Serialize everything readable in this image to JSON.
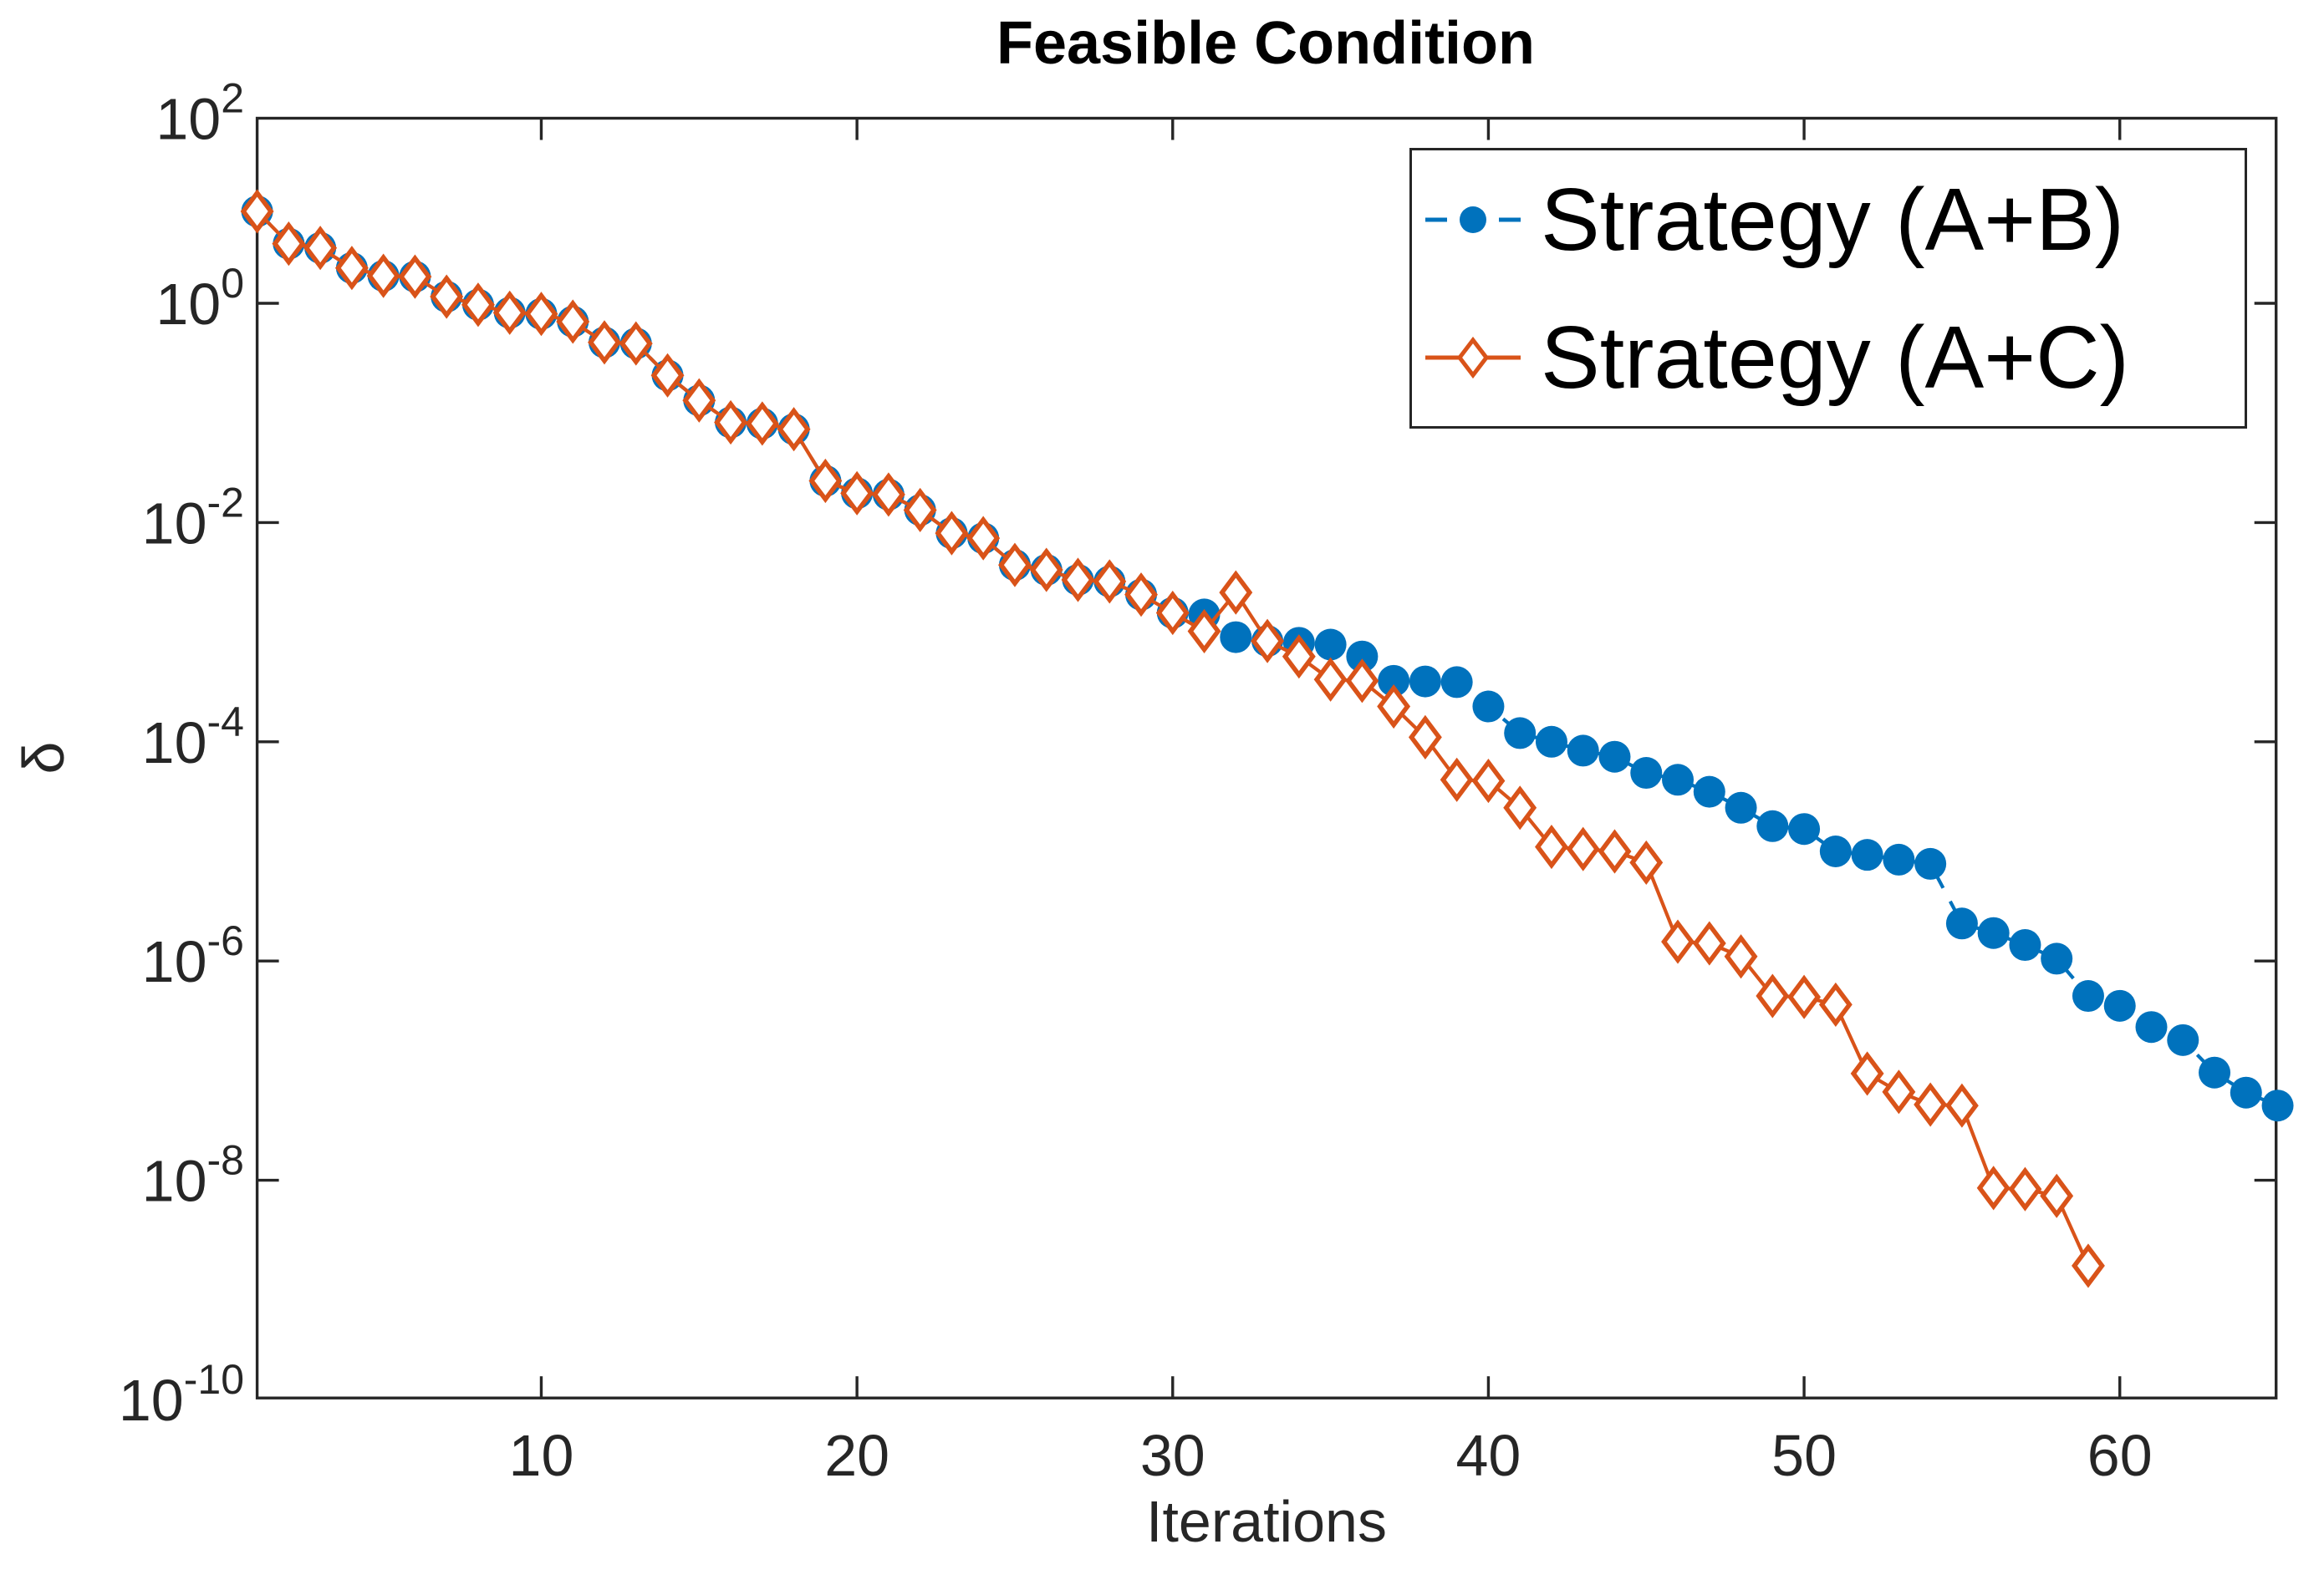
{
  "title": "Feasible Condition",
  "axis": {
    "x_label": "Iterations",
    "y_label": "δ",
    "x_ticks": [
      10,
      20,
      30,
      40,
      50,
      60
    ],
    "y_tick_base": "10",
    "y_tick_exponents": [
      2,
      0,
      -2,
      -4,
      -6,
      -8,
      -10
    ]
  },
  "legend": {
    "entries": [
      {
        "label": "Strategy (A+B)",
        "color": "#0072BD",
        "line_style": "dashed",
        "marker": "filled-circle"
      },
      {
        "label": "Strategy (A+C)",
        "color": "#D95319",
        "line_style": "solid",
        "marker": "open-diamond"
      }
    ]
  },
  "chart_data": {
    "type": "line",
    "title": "Feasible Condition",
    "xlabel": "Iterations",
    "ylabel": "δ",
    "grid": false,
    "legend_position": "northeast",
    "x_axis": {
      "min": 1,
      "max": 65,
      "ticks": [
        10,
        20,
        30,
        40,
        50,
        60
      ]
    },
    "y_axis": {
      "scale": "log",
      "min": 1e-10,
      "max": 100,
      "tick_labels": [
        "10^2",
        "10^0",
        "10^-2",
        "10^-4",
        "10^-6",
        "10^-8",
        "10^-10"
      ]
    },
    "series": [
      {
        "name": "Strategy (A+B)",
        "color": "#0072BD",
        "line_style": "dashed",
        "marker": "filled-circle",
        "x": [
          1,
          2,
          3,
          4,
          5,
          6,
          7,
          8,
          9,
          10,
          11,
          12,
          13,
          14,
          15,
          16,
          17,
          18,
          19,
          20,
          21,
          22,
          23,
          24,
          25,
          26,
          27,
          28,
          29,
          30,
          31,
          32,
          33,
          34,
          35,
          36,
          37,
          38,
          39,
          40,
          41,
          42,
          43,
          44,
          45,
          46,
          47,
          48,
          49,
          50,
          51,
          52,
          53,
          54,
          55,
          56,
          57,
          58,
          59,
          60,
          61,
          62,
          63,
          64,
          65
        ],
        "y": [
          6.9,
          3.5,
          3.2,
          2.1,
          1.78,
          1.75,
          1.15,
          0.97,
          0.82,
          0.8,
          0.68,
          0.44,
          0.43,
          0.22,
          0.13,
          0.082,
          0.08,
          0.071,
          0.024,
          0.0185,
          0.018,
          0.013,
          0.008,
          0.0072,
          0.0041,
          0.0037,
          0.003,
          0.0029,
          0.0022,
          0.0015,
          0.00145,
          0.0009,
          0.00083,
          0.0008,
          0.00077,
          0.0006,
          0.00036,
          0.000355,
          0.00035,
          0.00021,
          0.00012,
          0.0001,
          8.3e-05,
          7.3e-05,
          5.2e-05,
          4.5e-05,
          3.5e-05,
          2.5e-05,
          1.7e-05,
          1.6e-05,
          1e-05,
          9.3e-06,
          8.4e-06,
          7.7e-06,
          2.2e-06,
          1.8e-06,
          1.4e-06,
          1.05e-06,
          4.8e-07,
          3.9e-07,
          2.5e-07,
          1.9e-07,
          9.6e-08,
          6.3e-08,
          4.8e-08
        ]
      },
      {
        "name": "Strategy (A+C)",
        "color": "#D95319",
        "line_style": "solid",
        "marker": "open-diamond",
        "x": [
          1,
          2,
          3,
          4,
          5,
          6,
          7,
          8,
          9,
          10,
          11,
          12,
          13,
          14,
          15,
          16,
          17,
          18,
          19,
          20,
          21,
          22,
          23,
          24,
          25,
          26,
          27,
          28,
          29,
          30,
          31,
          32,
          33,
          34,
          35,
          36,
          37,
          38,
          39,
          40,
          41,
          42,
          43,
          44,
          45,
          46,
          47,
          48,
          49,
          50,
          51,
          52,
          53,
          54,
          55,
          56,
          57,
          58,
          59
        ],
        "y": [
          6.9,
          3.5,
          3.2,
          2.1,
          1.78,
          1.75,
          1.15,
          0.97,
          0.82,
          0.8,
          0.68,
          0.44,
          0.43,
          0.22,
          0.13,
          0.082,
          0.08,
          0.071,
          0.024,
          0.0185,
          0.018,
          0.013,
          0.008,
          0.0072,
          0.0041,
          0.0037,
          0.003,
          0.0029,
          0.0022,
          0.0015,
          0.00102,
          0.0023,
          0.00083,
          0.0006,
          0.00037,
          0.00036,
          0.00021,
          0.00011,
          4.5e-05,
          4.4e-05,
          2.5e-05,
          1.1e-05,
          1.05e-05,
          1e-05,
          7.9e-06,
          1.5e-06,
          1.45e-06,
          1.1e-06,
          4.8e-07,
          4.7e-07,
          4e-07,
          9.4e-08,
          6.4e-08,
          4.9e-08,
          4.8e-08,
          8.5e-09,
          8.3e-09,
          7.2e-09,
          1.66e-09
        ]
      }
    ]
  }
}
